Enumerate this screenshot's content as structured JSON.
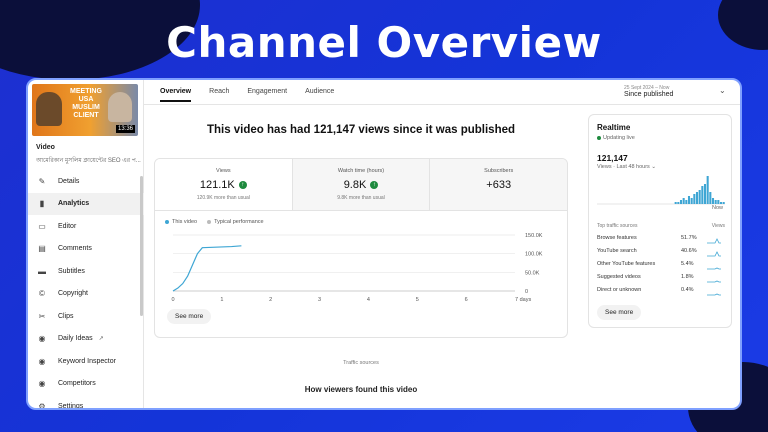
{
  "headline": "Channel Overview",
  "sidebar": {
    "thumbnail": {
      "text": "MEETING USA MUSLIM CLIENT",
      "duration": "13:36"
    },
    "video_label": "Video",
    "video_title": "আমেরিকান মুসলিম ক্লায়েন্টের SEO এর প...",
    "items": [
      {
        "label": "Details",
        "icon": "pencil-icon"
      },
      {
        "label": "Analytics",
        "icon": "analytics-icon",
        "active": true
      },
      {
        "label": "Editor",
        "icon": "editor-icon"
      },
      {
        "label": "Comments",
        "icon": "comments-icon"
      },
      {
        "label": "Subtitles",
        "icon": "subtitles-icon"
      },
      {
        "label": "Copyright",
        "icon": "copyright-icon"
      },
      {
        "label": "Clips",
        "icon": "scissors-icon"
      },
      {
        "label": "Daily Ideas",
        "icon": "ideas-icon",
        "external": true
      },
      {
        "label": "Keyword Inspector",
        "icon": "keyword-icon"
      },
      {
        "label": "Competitors",
        "icon": "competitors-icon"
      },
      {
        "label": "Settings",
        "icon": "gear-icon"
      }
    ]
  },
  "tabs": [
    "Overview",
    "Reach",
    "Engagement",
    "Audience"
  ],
  "date_range": {
    "caption": "25 Sept 2024 – Now",
    "value": "Since published"
  },
  "main": {
    "headline": "This video has had 121,147 views since it was published",
    "metrics": [
      {
        "label": "Views",
        "value": "121.1K",
        "sub": "120.9K more than usual"
      },
      {
        "label": "Watch time (hours)",
        "value": "9.8K",
        "sub": "9.8K more than usual"
      },
      {
        "label": "Subscribers",
        "value": "+633",
        "sub": ""
      }
    ],
    "legend": {
      "this_video": "This video",
      "typical": "Typical performance"
    },
    "see_more": "See more",
    "traffic_sources_label": "Traffic sources",
    "traffic_sources_title": "How viewers found this video"
  },
  "chart_data": {
    "type": "line",
    "x": [
      0,
      0.1,
      0.2,
      0.3,
      0.4,
      0.5,
      0.6,
      0.8,
      1.0,
      1.2,
      1.4
    ],
    "series": [
      {
        "name": "This video",
        "values": [
          0,
          8,
          20,
          40,
          70,
          100,
          116,
          117,
          118,
          119,
          121
        ]
      }
    ],
    "x_ticks": [
      "0",
      "1",
      "2",
      "3",
      "4",
      "5",
      "6",
      "7 days"
    ],
    "y_ticks": [
      "150.0K",
      "100.0K",
      "50.0K",
      "0"
    ],
    "xlim": [
      0,
      7
    ],
    "ylim": [
      0,
      150
    ],
    "grid": true
  },
  "realtime": {
    "title": "Realtime",
    "status": "Updating live",
    "count": "121,147",
    "sub": "Views · Last 48 hours",
    "now": "Now",
    "bars": [
      0,
      0,
      0,
      0,
      0,
      0,
      0,
      0,
      0,
      0,
      0,
      0,
      0,
      0,
      0,
      0,
      0,
      0,
      0,
      0,
      0,
      0,
      0,
      0,
      0,
      0,
      0,
      0,
      0,
      1,
      1,
      2,
      3,
      2,
      4,
      3,
      5,
      6,
      7,
      9,
      10,
      14,
      6,
      3,
      2,
      2,
      1,
      1
    ],
    "table_header": {
      "left": "Top traffic sources",
      "right": "Views"
    },
    "sources": [
      {
        "name": "Browse features",
        "pct": "51.7%"
      },
      {
        "name": "YouTube search",
        "pct": "40.6%"
      },
      {
        "name": "Other YouTube features",
        "pct": "5.4%"
      },
      {
        "name": "Suggested videos",
        "pct": "1.8%"
      },
      {
        "name": "Direct or unknown",
        "pct": "0.4%"
      }
    ],
    "see_more": "See more"
  },
  "colors": {
    "accent": "#3ea6d4",
    "up": "#1e8a3e",
    "background": "#1434d8"
  }
}
